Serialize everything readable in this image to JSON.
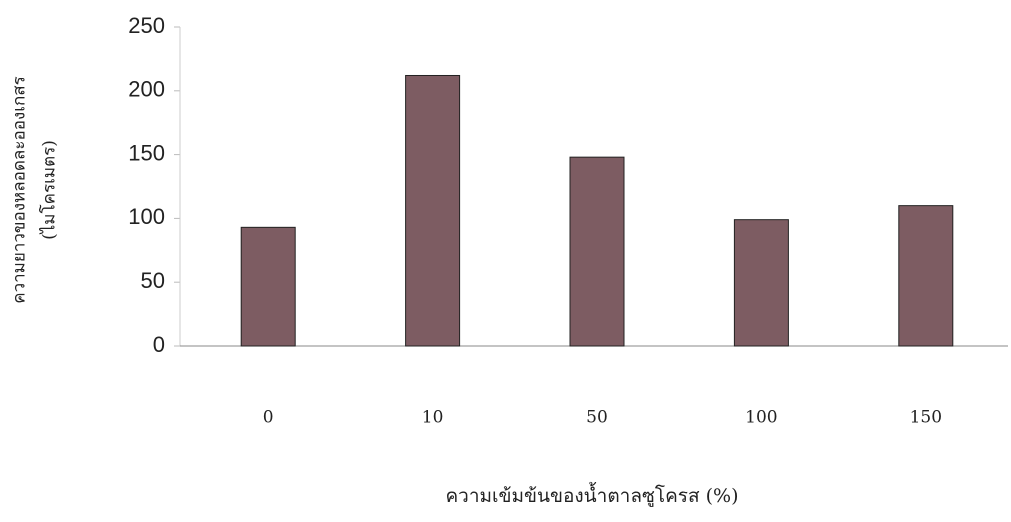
{
  "chart_data": {
    "type": "bar",
    "y_label": [
      "ความยาวของหลอดละอองเกสร",
      "(ไมโครเมตร)"
    ],
    "x_label": "ความเข้มข้นของน้ำตาลซูโครส (%)",
    "categories": [
      "0",
      "10",
      "50",
      "100",
      "150"
    ],
    "values": [
      93,
      212,
      148,
      99,
      110
    ],
    "color": "#7d5c62",
    "ylim": [
      0,
      250
    ],
    "yticks": [
      0,
      50,
      100,
      150,
      200,
      250
    ],
    "grid": false
  }
}
